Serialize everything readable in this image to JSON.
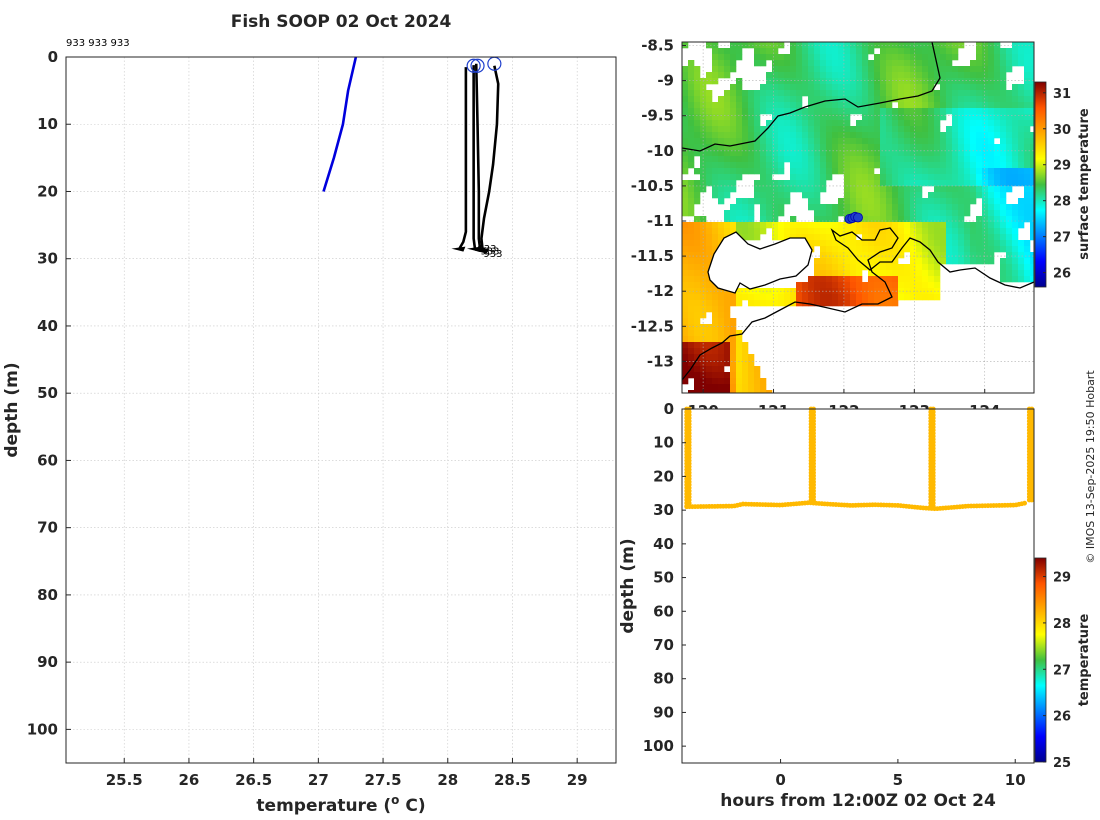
{
  "title": "Fish SOOP 02 Oct 2024",
  "credit": "© IMOS 13-Sep-2025 19:50 Hobart",
  "colors": {
    "profile_current": "#0000dd",
    "profile_history": "#000000",
    "section_points": "#f5b800",
    "marker_circle": "#1f3fcc"
  },
  "chart_data": [
    {
      "id": "profile",
      "type": "line",
      "xlabel": "temperature (",
      "xlabel_sup": "o",
      "xlabel_suffix": " C)",
      "ylabel": "depth (m)",
      "xlim": [
        25.05,
        29.3
      ],
      "ylim": [
        0,
        105
      ],
      "y_reversed": true,
      "grid": true,
      "xticks": [
        25.5,
        26,
        26.5,
        27,
        27.5,
        28,
        28.5,
        29
      ],
      "xtick_labels": [
        "25.5",
        "26",
        "26.5",
        "27",
        "27.5",
        "28",
        "28.5",
        "29"
      ],
      "yticks": [
        0,
        10,
        20,
        30,
        40,
        50,
        60,
        70,
        80,
        90,
        100
      ],
      "ytick_labels": [
        "0",
        "10",
        "20",
        "30",
        "40",
        "50",
        "60",
        "70",
        "80",
        "90",
        "100"
      ],
      "annotation": "933 933 933",
      "end_labels": [
        "933",
        "933",
        "933"
      ],
      "series": [
        {
          "name": "current",
          "color": "#0000dd",
          "points": [
            [
              27.29,
              0
            ],
            [
              27.23,
              5
            ],
            [
              27.19,
              10
            ],
            [
              27.12,
              15
            ],
            [
              27.04,
              20
            ]
          ]
        },
        {
          "name": "cast-1",
          "color": "#000000",
          "points": [
            [
              28.14,
              1.5
            ],
            [
              28.14,
              10
            ],
            [
              28.14,
              20
            ],
            [
              28.14,
              26
            ],
            [
              28.12,
              27.5
            ],
            [
              28.09,
              28.5
            ]
          ]
        },
        {
          "name": "cast-2",
          "color": "#000000",
          "points": [
            [
              28.2,
              1.2
            ],
            [
              28.2,
              10
            ],
            [
              28.2,
              20
            ],
            [
              28.2,
              27
            ],
            [
              28.21,
              28.5
            ]
          ]
        },
        {
          "name": "cast-3",
          "color": "#000000",
          "points": [
            [
              28.22,
              1.0
            ],
            [
              28.23,
              10
            ],
            [
              28.24,
              20
            ],
            [
              28.24,
              27
            ],
            [
              28.25,
              28.6
            ]
          ]
        },
        {
          "name": "cast-4",
          "color": "#000000",
          "points": [
            [
              28.36,
              1.3
            ],
            [
              28.39,
              4
            ],
            [
              28.38,
              10
            ],
            [
              28.35,
              16
            ],
            [
              28.32,
              20
            ],
            [
              28.28,
              24
            ],
            [
              28.26,
              27
            ],
            [
              28.27,
              28.8
            ]
          ]
        }
      ],
      "markers": [
        [
          28.2,
          1.3
        ],
        [
          28.23,
          1.3
        ],
        [
          28.36,
          1.0
        ]
      ]
    },
    {
      "id": "sst-map",
      "type": "heatmap",
      "colorbar_label": "surface temperature",
      "clim": [
        25.6,
        31.3
      ],
      "colorbar_ticks": [
        26,
        27,
        28,
        29,
        30,
        31
      ],
      "colorbar_tick_labels": [
        "26",
        "27",
        "28",
        "29",
        "30",
        "31"
      ],
      "xlim": [
        119.7,
        124.7
      ],
      "ylim": [
        -13.45,
        -8.45
      ],
      "xticks": [
        120,
        121,
        122,
        123,
        124
      ],
      "xtick_labels": [
        "120",
        "121",
        "122",
        "123",
        "124"
      ],
      "yticks": [
        -8.5,
        -9,
        -9.5,
        -10,
        -10.5,
        -11,
        -11.5,
        -12,
        -12.5,
        -13
      ],
      "ytick_labels": [
        "-8.5",
        "-9",
        "-9.5",
        "-10",
        "-10.5",
        "-11",
        "-11.5",
        "-12",
        "-12.5",
        "-13"
      ],
      "track": [
        [
          122.08,
          -10.97
        ],
        [
          122.12,
          -10.96
        ],
        [
          122.16,
          -10.94
        ],
        [
          122.2,
          -10.95
        ]
      ]
    },
    {
      "id": "depth-section",
      "type": "scatter",
      "xlabel": "hours from 12:00Z 02 Oct 24",
      "ylabel": "depth (m)",
      "colorbar_label": "temperature",
      "clim": [
        25,
        29.4
      ],
      "colorbar_ticks": [
        25,
        26,
        27,
        28,
        29
      ],
      "colorbar_tick_labels": [
        "25",
        "26",
        "27",
        "28",
        "29"
      ],
      "xlim": [
        -4.2,
        10.8
      ],
      "ylim": [
        0,
        105
      ],
      "y_reversed": true,
      "xticks": [
        0,
        5,
        10
      ],
      "xtick_labels": [
        "0",
        "5",
        "10"
      ],
      "yticks": [
        0,
        10,
        20,
        30,
        40,
        50,
        60,
        70,
        80,
        90,
        100
      ],
      "ytick_labels": [
        "0",
        "10",
        "20",
        "30",
        "40",
        "50",
        "60",
        "70",
        "80",
        "90",
        "100"
      ],
      "bottom_path": [
        [
          -4,
          29
        ],
        [
          -2,
          28.8
        ],
        [
          -1.6,
          28.2
        ],
        [
          0,
          28.5
        ],
        [
          1.2,
          27.8
        ],
        [
          2,
          28.2
        ],
        [
          3,
          28.6
        ],
        [
          4,
          28.4
        ],
        [
          5,
          28.6
        ],
        [
          6,
          29.3
        ],
        [
          6.6,
          29.6
        ],
        [
          8,
          28.8
        ],
        [
          10,
          28.5
        ],
        [
          10.5,
          27.8
        ]
      ],
      "casts": [
        -4,
        1.3,
        6.4,
        10.6
      ],
      "point_temperature": 28.2
    }
  ]
}
